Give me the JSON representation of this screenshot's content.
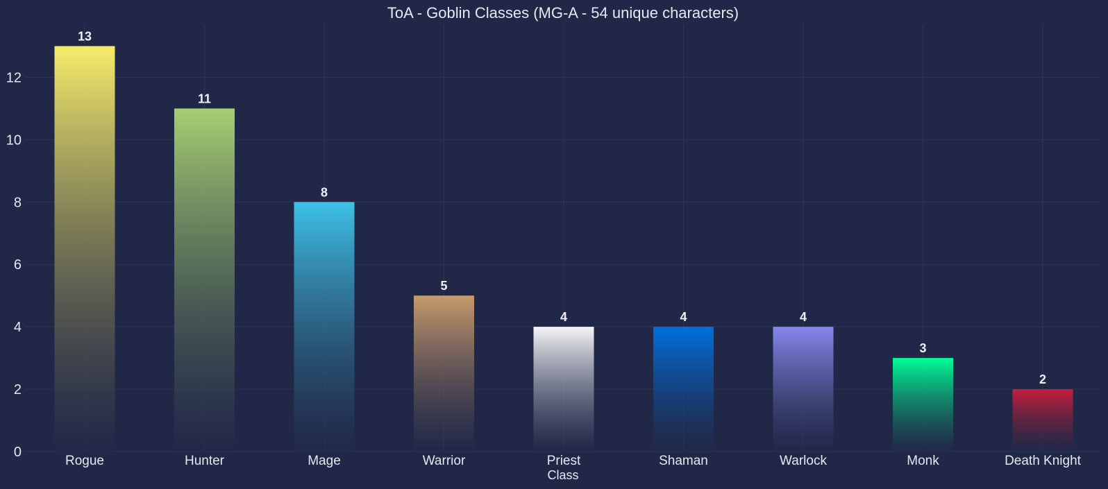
{
  "chart_data": {
    "type": "bar",
    "title": "ToA - Goblin Classes (MG-A - 54 unique characters)",
    "xlabel": "Class",
    "ylabel": "",
    "categories": [
      "Rogue",
      "Hunter",
      "Mage",
      "Warrior",
      "Priest",
      "Shaman",
      "Warlock",
      "Monk",
      "Death Knight"
    ],
    "values": [
      13,
      11,
      8,
      5,
      4,
      4,
      4,
      3,
      2
    ],
    "colors": [
      "#f7ec6a",
      "#a6cf71",
      "#3ec1e8",
      "#c69b6d",
      "#f6f6f8",
      "#0070de",
      "#8788ee",
      "#00ff98",
      "#c41e3a"
    ],
    "ylim": [
      0,
      13.7
    ],
    "yticks": [
      0,
      2,
      4,
      6,
      8,
      10,
      12
    ],
    "grid": true,
    "legend": "none",
    "background": "#212847"
  }
}
